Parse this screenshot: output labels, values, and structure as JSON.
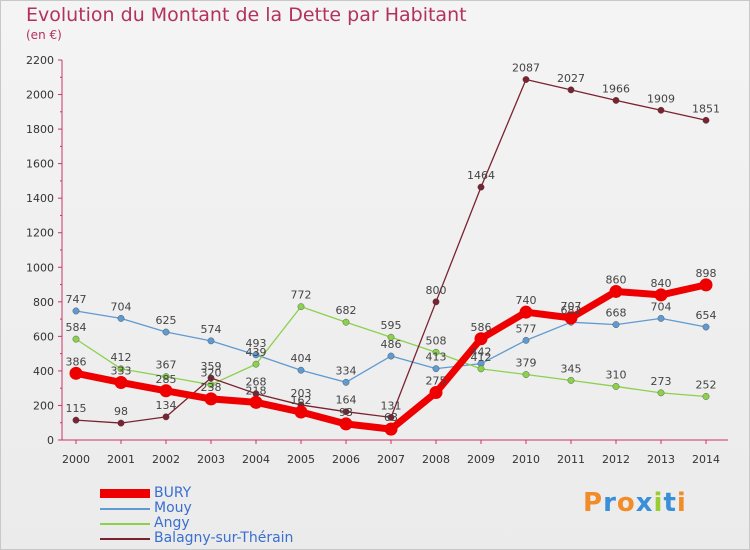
{
  "header": {
    "title": "Evolution du Montant de la Dette par Habitant",
    "subtitle": "(en €)"
  },
  "brand": {
    "logo_text": "Proxiti",
    "logo_colors": [
      "#f28c28",
      "#3a8fd9",
      "#f28c28",
      "#3a8fd9",
      "#9acd32",
      "#3a8fd9",
      "#f28c28"
    ]
  },
  "chart_data": {
    "type": "line",
    "title": "Evolution du Montant de la Dette par Habitant",
    "subtitle": "(en €)",
    "xlabel": "",
    "ylabel": "",
    "categories": [
      "2000",
      "2001",
      "2002",
      "2003",
      "2004",
      "2005",
      "2006",
      "2007",
      "2008",
      "2009",
      "2010",
      "2011",
      "2012",
      "2013",
      "2014"
    ],
    "ylim": [
      0,
      2200
    ],
    "yticks": [
      0,
      200,
      400,
      600,
      800,
      1000,
      1200,
      1400,
      1600,
      1800,
      2000,
      2200
    ],
    "grid": false,
    "legend_position": "bottom-left",
    "series": [
      {
        "name": "BURY",
        "color": "#ee0000",
        "emphasis": true,
        "values": [
          386,
          333,
          285,
          238,
          218,
          162,
          93,
          63,
          275,
          586,
          740,
          707,
          860,
          840,
          898
        ],
        "labels": [
          "386",
          "333",
          "285",
          "238",
          "218",
          "162",
          "93",
          "63",
          "275",
          "586",
          "740",
          "707",
          "860",
          "840",
          "898"
        ]
      },
      {
        "name": "Mouy",
        "color": "#5f9ad0",
        "values": [
          747,
          704,
          625,
          574,
          493,
          404,
          334,
          486,
          413,
          442,
          577,
          682,
          668,
          704,
          654
        ],
        "labels": [
          "747",
          "704",
          "625",
          "574",
          "493",
          "404",
          "334",
          "486",
          "413",
          "442",
          "577",
          "682",
          "668",
          "704",
          "654"
        ]
      },
      {
        "name": "Angy",
        "color": "#8bd14c",
        "values": [
          584,
          412,
          367,
          320,
          439,
          772,
          682,
          595,
          508,
          412,
          379,
          345,
          310,
          273,
          252
        ],
        "labels": [
          "584",
          "412",
          "367",
          "320",
          "439",
          "772",
          "682",
          "595",
          "508",
          "412",
          "379",
          "345",
          "310",
          "273",
          "252"
        ]
      },
      {
        "name": "Balagny-sur-Thérain",
        "color": "#7a2330",
        "values": [
          115,
          98,
          134,
          359,
          268,
          203,
          164,
          131,
          800,
          1464,
          2087,
          2027,
          1966,
          1909,
          1851
        ],
        "labels": [
          "115",
          "98",
          "134",
          "359",
          "268",
          "203",
          "164",
          "131",
          "800",
          "1464",
          "2087",
          "2027",
          "1966",
          "1909",
          "1851"
        ]
      }
    ]
  }
}
